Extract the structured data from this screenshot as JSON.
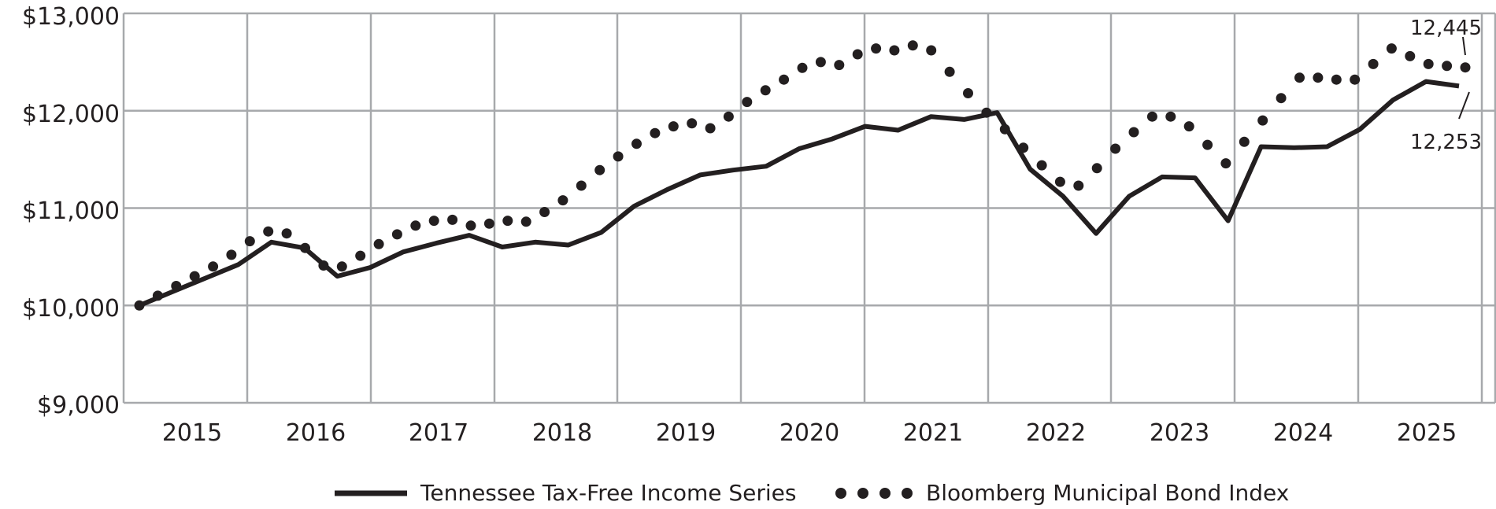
{
  "chart_data": {
    "type": "line",
    "title": "",
    "xlabel": "",
    "ylabel": "",
    "ylim": [
      9000,
      13000
    ],
    "yticks": [
      9000,
      10000,
      11000,
      12000,
      13000
    ],
    "ytick_labels": [
      "$9,000",
      "$10,000",
      "$11,000",
      "$12,000",
      "$13,000"
    ],
    "xtick_labels": [
      "2015",
      "2016",
      "2017",
      "2018",
      "2019",
      "2020",
      "2021",
      "2022",
      "2023",
      "2024",
      "2025"
    ],
    "grid": true,
    "legend_position": "bottom",
    "series": [
      {
        "name": "Tennessee Tax-Free Income Series",
        "style": "solid",
        "color": "#231f20",
        "values": [
          10000,
          10140,
          10280,
          10420,
          10650,
          10590,
          10300,
          10390,
          10550,
          10640,
          10720,
          10600,
          10650,
          10620,
          10750,
          11020,
          11190,
          11340,
          11390,
          11430,
          11610,
          11710,
          11840,
          11800,
          11940,
          11910,
          11980,
          11400,
          11120,
          10740,
          11120,
          11320,
          11310,
          10870,
          11630,
          11620,
          11630,
          11810,
          12110,
          12300,
          12253
        ]
      },
      {
        "name": "Bloomberg Municipal Bond Index",
        "style": "dotted",
        "color": "#231f20",
        "values": [
          10000,
          10100,
          10200,
          10300,
          10400,
          10520,
          10660,
          10760,
          10740,
          10590,
          10410,
          10400,
          10510,
          10630,
          10730,
          10820,
          10870,
          10880,
          10820,
          10840,
          10870,
          10860,
          10960,
          11080,
          11230,
          11390,
          11530,
          11660,
          11770,
          11840,
          11870,
          11820,
          11940,
          12090,
          12210,
          12320,
          12440,
          12500,
          12470,
          12580,
          12640,
          12620,
          12670,
          12620,
          12400,
          12180,
          11980,
          11810,
          11620,
          11440,
          11270,
          11230,
          11410,
          11610,
          11780,
          11940,
          11940,
          11840,
          11650,
          11460,
          11680,
          11900,
          12130,
          12340,
          12340,
          12320,
          12320,
          12480,
          12640,
          12560,
          12480,
          12460,
          12445
        ]
      }
    ],
    "end_labels": [
      "12,445",
      "12,253"
    ]
  }
}
